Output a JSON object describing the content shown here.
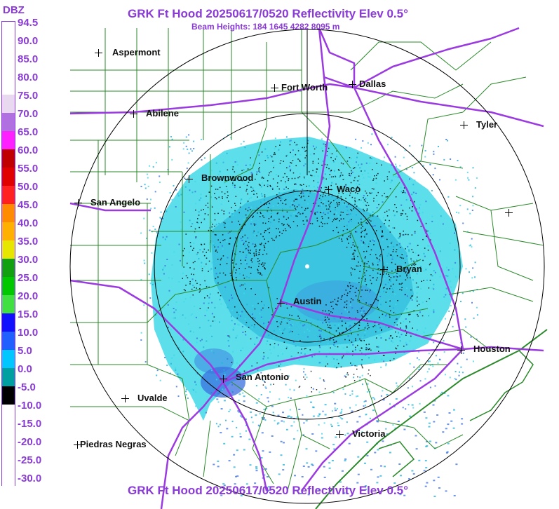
{
  "header": {
    "title": "GRK Ft Hood 20250617/0520 Reflectivity Elev 0.5°",
    "subtitle": "Beam Heights: 184 1645 4282 8095 m",
    "footer_title": "GRK Ft Hood 20250617/0520 Reflectivity Elev 0.5°"
  },
  "legend": {
    "unit": "DBZ",
    "labels": [
      "94.5",
      "90.0",
      "85.0",
      "80.0",
      "75.0",
      "70.0",
      "65.0",
      "60.0",
      "55.0",
      "50.0",
      "45.0",
      "40.0",
      "35.0",
      "30.0",
      "25.0",
      "20.0",
      "15.0",
      "10.0",
      "5.0",
      "0.0",
      "-5.0",
      "-10.0",
      "-15.0",
      "-20.0",
      "-25.0",
      "-30.0"
    ],
    "colors": [
      "#ffffff",
      "#ffffff",
      "#ffffff",
      "#ffffff",
      "#e8d8f0",
      "#b070e0",
      "#ff20ff",
      "#c00000",
      "#e00000",
      "#ff2020",
      "#ff8c00",
      "#ffb000",
      "#e6e600",
      "#10a010",
      "#00c800",
      "#40e040",
      "#1010ff",
      "#2060ff",
      "#00c8ff",
      "#00a0a0",
      "#000000",
      "#ffffff",
      "#ffffff",
      "#ffffff",
      "#ffffff",
      "#ffffff"
    ]
  },
  "cities": [
    {
      "name": "Aspermont"
    },
    {
      "name": "Fort Worth"
    },
    {
      "name": "Dallas"
    },
    {
      "name": "Abilene"
    },
    {
      "name": "Tyler"
    },
    {
      "name": "Brownwood"
    },
    {
      "name": "Waco"
    },
    {
      "name": "San Angelo"
    },
    {
      "name": "Bryan"
    },
    {
      "name": "Austin"
    },
    {
      "name": "Houston"
    },
    {
      "name": "San Antonio"
    },
    {
      "name": "Uvalde"
    },
    {
      "name": "Victoria"
    },
    {
      "name": "Piedras Negras"
    },
    {
      "name": ""
    }
  ],
  "colors": {
    "title": "#8a3ad6",
    "county_lines": "#2a8a2a",
    "highways": "#9a3ae0",
    "range_rings": "#000000",
    "echo_light": "#40d8e8",
    "echo_mid": "#20b0d8",
    "echo_blue": "#3a70e0"
  }
}
